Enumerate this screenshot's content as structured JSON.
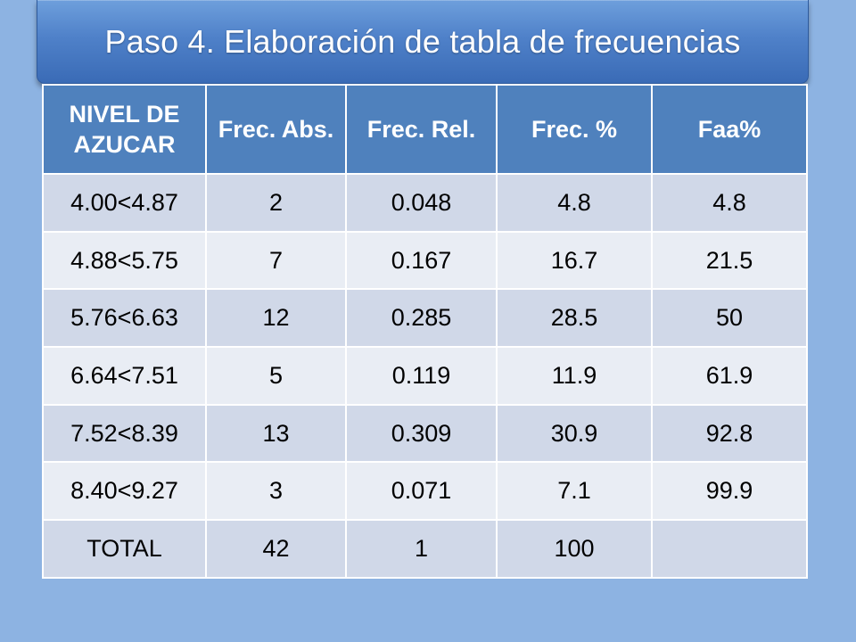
{
  "slide": {
    "title": "Paso 4. Elaboración de tabla de frecuencias"
  },
  "table": {
    "headers": [
      "NIVEL DE AZUCAR",
      "Frec. Abs.",
      "Frec. Rel.",
      "Frec. %",
      "Faa%"
    ],
    "rows": [
      [
        "4.00<4.87",
        "2",
        "0.048",
        "4.8",
        "4.8"
      ],
      [
        "4.88<5.75",
        "7",
        "0.167",
        "16.7",
        "21.5"
      ],
      [
        "5.76<6.63",
        "12",
        "0.285",
        "28.5",
        "50"
      ],
      [
        "6.64<7.51",
        "5",
        "0.119",
        "11.9",
        "61.9"
      ],
      [
        "7.52<8.39",
        "13",
        "0.309",
        "30.9",
        "92.8"
      ],
      [
        "8.40<9.27",
        "3",
        "0.071",
        "7.1",
        "99.9"
      ],
      [
        "TOTAL",
        "42",
        "1",
        "100",
        ""
      ]
    ]
  },
  "colors": {
    "background": "#8db3e2",
    "title_bar": "#4f81c9",
    "header": "#4f81bd",
    "row_odd": "#d0d8e8",
    "row_even": "#e9edf4"
  }
}
